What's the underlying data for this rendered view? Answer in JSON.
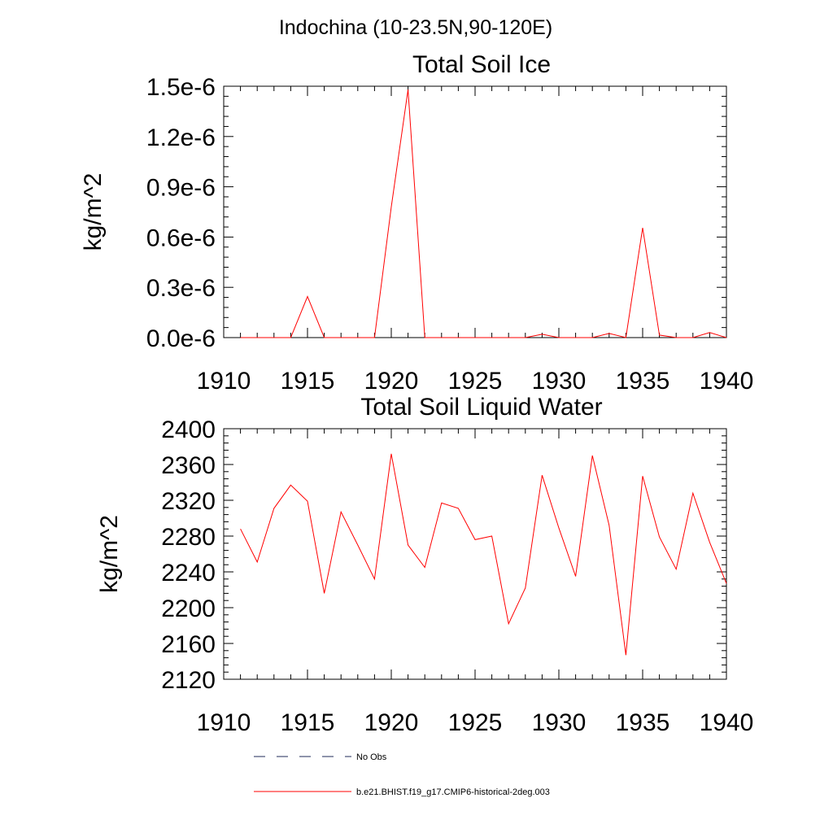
{
  "figure": {
    "title": "Indochina (10-23.5N,90-120E)"
  },
  "chart_data": [
    {
      "type": "line",
      "title": "Total Soil Ice",
      "xlabel": "",
      "ylabel": "kg/m^2",
      "xlim": [
        1910,
        1940
      ],
      "ylim": [
        0,
        1.5e-06
      ],
      "x_ticks": [
        1910,
        1915,
        1920,
        1925,
        1930,
        1935,
        1940
      ],
      "x_tick_labels": [
        "1910",
        "1915",
        "1920",
        "1925",
        "1930",
        "1935",
        "1940"
      ],
      "y_ticks": [
        0,
        3e-07,
        6e-07,
        9e-07,
        1.2e-06,
        1.5e-06
      ],
      "y_tick_labels": [
        "0.0e-6",
        "0.3e-6",
        "0.6e-6",
        "0.9e-6",
        "1.2e-6",
        "1.5e-6"
      ],
      "grid": false,
      "x": [
        1911,
        1912,
        1913,
        1914,
        1915,
        1916,
        1917,
        1918,
        1919,
        1920,
        1921,
        1922,
        1923,
        1924,
        1925,
        1926,
        1927,
        1928,
        1929,
        1930,
        1931,
        1932,
        1933,
        1934,
        1935,
        1936,
        1937,
        1938,
        1939,
        1940
      ],
      "series": [
        {
          "name": "b.e21.BHIST.f19_g17.CMIP6-historical-2deg.003",
          "color": "#ff0000",
          "values": [
            0,
            0,
            0,
            0,
            2.45e-07,
            0,
            0,
            0,
            0,
            7.8e-07,
            1.48e-06,
            0,
            0,
            0,
            0,
            0,
            0,
            0,
            2e-08,
            0,
            0,
            0,
            2.5e-08,
            0,
            6.55e-07,
            1.5e-08,
            0,
            0,
            3e-08,
            0
          ]
        }
      ]
    },
    {
      "type": "line",
      "title": "Total Soil Liquid Water",
      "xlabel": "",
      "ylabel": "kg/m^2",
      "xlim": [
        1910,
        1940
      ],
      "ylim": [
        2120,
        2400
      ],
      "x_ticks": [
        1910,
        1915,
        1920,
        1925,
        1930,
        1935,
        1940
      ],
      "x_tick_labels": [
        "1910",
        "1915",
        "1920",
        "1925",
        "1930",
        "1935",
        "1940"
      ],
      "y_ticks": [
        2120,
        2160,
        2200,
        2240,
        2280,
        2320,
        2360,
        2400
      ],
      "y_tick_labels": [
        "2120",
        "2160",
        "2200",
        "2240",
        "2280",
        "2320",
        "2360",
        "2400"
      ],
      "grid": false,
      "x": [
        1911,
        1912,
        1913,
        1914,
        1915,
        1916,
        1917,
        1918,
        1919,
        1920,
        1921,
        1922,
        1923,
        1924,
        1925,
        1926,
        1927,
        1928,
        1929,
        1930,
        1931,
        1932,
        1933,
        1934,
        1935,
        1936,
        1937,
        1938,
        1939,
        1940
      ],
      "series": [
        {
          "name": "b.e21.BHIST.f19_g17.CMIP6-historical-2deg.003",
          "color": "#ff0000",
          "values": [
            2288,
            2251,
            2311,
            2337,
            2319,
            2216,
            2307,
            2270,
            2232,
            2372,
            2270,
            2245,
            2317,
            2311,
            2276,
            2280,
            2182,
            2222,
            2348,
            2289,
            2235,
            2370,
            2292,
            2147,
            2347,
            2279,
            2243,
            2328,
            2273,
            2227
          ]
        }
      ]
    }
  ],
  "legend": {
    "placement": "bottom",
    "items": [
      {
        "label": "No Obs",
        "style": "dashed",
        "color": "#1f2a5a"
      },
      {
        "label": "b.e21.BHIST.f19_g17.CMIP6-historical-2deg.003",
        "style": "solid",
        "color": "#ff0000"
      }
    ]
  }
}
